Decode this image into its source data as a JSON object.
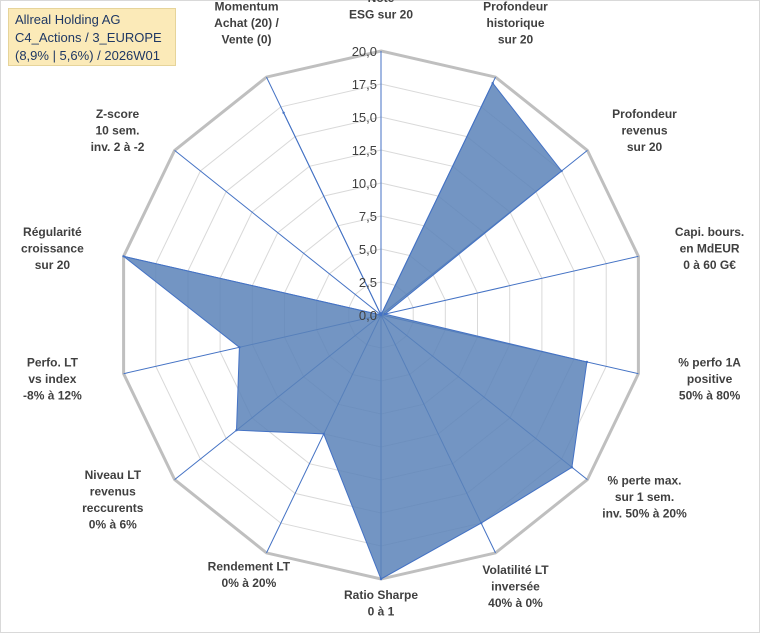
{
  "header": {
    "line1": "Allreal Holding AG",
    "line2": "C4_Actions / 3_EUROPE",
    "line3": "(8,9% | 5,6%) / 2026W01"
  },
  "chart_data": {
    "type": "radar",
    "ylim": [
      0,
      20
    ],
    "ticks": [
      "0,0",
      "2,5",
      "5,0",
      "7,5",
      "10,0",
      "12,5",
      "15,0",
      "17,5",
      "20,0"
    ],
    "grid": true,
    "colors": {
      "fill": "#5b82b8",
      "stroke": "#4472c4",
      "grid": "#d9d9d9"
    },
    "categories": [
      [
        "Note",
        "ESG sur 20"
      ],
      [
        "Profondeur",
        "historique",
        "sur 20"
      ],
      [
        "Profondeur",
        "revenus",
        "sur 20"
      ],
      [
        "Capi. bours.",
        "en MdEUR",
        "0 à 60 G€"
      ],
      [
        "% perfo 1A",
        "positive",
        "50% à 80%"
      ],
      [
        "% perte max.",
        "sur 1 sem.",
        "inv. 50% à 20%"
      ],
      [
        "Volatilité LT",
        "inversée",
        "40% à 0%"
      ],
      [
        "Ratio Sharpe",
        "0 à 1"
      ],
      [
        "Rendement LT",
        "0% à 20%"
      ],
      [
        "Niveau LT",
        "revenus",
        "reccurents",
        "0% à 6%"
      ],
      [
        "Perfo. LT",
        "vs index",
        "-8% à 12%"
      ],
      [
        "Régularité",
        "croissance",
        "sur 20"
      ],
      [
        "Z-score",
        "10 sem.",
        "inv. 2 à -2"
      ],
      [
        "Momentum",
        "Achat (20) /",
        "Vente (0)"
      ]
    ],
    "values": [
      0,
      19.5,
      17.5,
      0.3,
      16,
      18.5,
      17.5,
      20,
      10,
      14,
      11,
      20,
      0,
      17
    ]
  }
}
